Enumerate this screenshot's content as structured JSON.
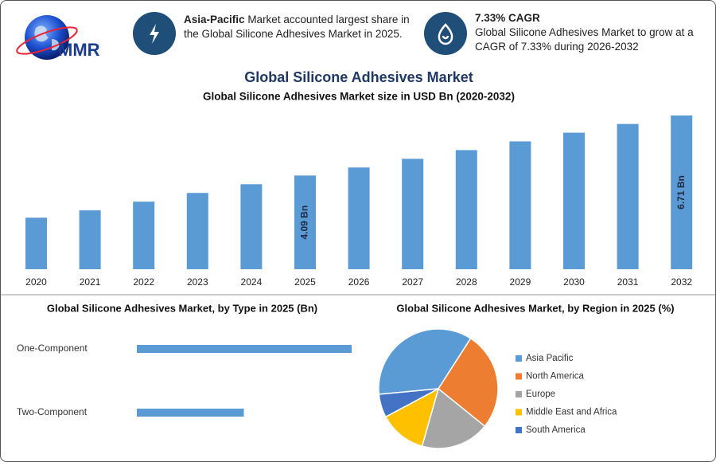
{
  "header": {
    "logo": "MMR",
    "highlights": [
      {
        "bold": "Asia-Pacific",
        "text": "Market accounted largest share in the Global Silicone Adhesives Market in 2025."
      },
      {
        "title": "7.33% CAGR",
        "text": "Global Silicone Adhesives Market to grow at a CAGR of 7.33% during 2026-2032"
      }
    ]
  },
  "chart_data": [
    {
      "type": "bar",
      "title": "Global Silicone Adhesives Market",
      "subtitle": "Global Silicone Adhesives Market size in USD Bn (2020-2032)",
      "categories": [
        "2020",
        "2021",
        "2022",
        "2023",
        "2024",
        "2025",
        "2026",
        "2027",
        "2028",
        "2029",
        "2030",
        "2031",
        "2032"
      ],
      "values": [
        2.25,
        2.57,
        2.95,
        3.33,
        3.71,
        4.09,
        4.44,
        4.82,
        5.2,
        5.58,
        5.96,
        6.34,
        6.71
      ],
      "value_labels": [
        null,
        null,
        null,
        null,
        null,
        "4.09 Bn",
        null,
        null,
        null,
        null,
        null,
        null,
        "6.71 Bn"
      ],
      "color": "#5b9bd5"
    },
    {
      "type": "bar",
      "orientation": "horizontal",
      "title": "Global Silicone Adhesives Market, by Type in 2025 (Bn)",
      "categories": [
        "One-Component",
        "Two-Component"
      ],
      "values": [
        2.73,
        1.36
      ],
      "color": "#5b9bd5"
    },
    {
      "type": "pie",
      "title": "Global Silicone Adhesives Market, by Region in 2025 (%)",
      "categories": [
        "Asia Pacific",
        "North America",
        "Europe",
        "Middle East and Africa",
        "South America"
      ],
      "values": [
        35.6,
        26.7,
        18.6,
        12.8,
        6.3
      ],
      "colors": [
        "#5b9bd5",
        "#ed7d31",
        "#a5a5a5",
        "#ffc000",
        "#4472c4"
      ]
    }
  ]
}
